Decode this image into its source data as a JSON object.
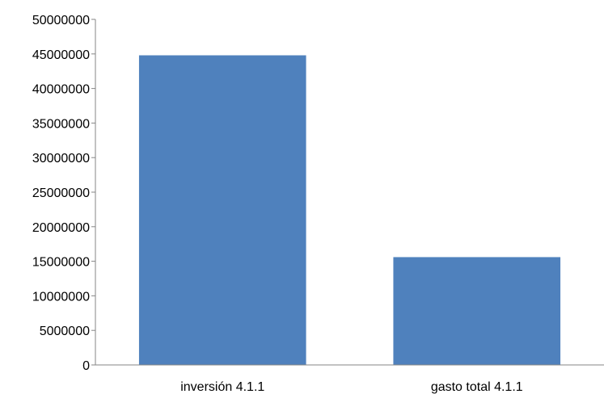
{
  "chart_data": {
    "type": "bar",
    "categories": [
      "inversión 4.1.1",
      "gasto total 4.1.1"
    ],
    "values": [
      44800000,
      15600000
    ],
    "ylim": [
      0,
      50000000
    ],
    "yticks": [
      0,
      5000000,
      10000000,
      15000000,
      20000000,
      25000000,
      30000000,
      35000000,
      40000000,
      45000000,
      50000000
    ],
    "ytick_labels": [
      "0",
      "5000000",
      "10000000",
      "15000000",
      "20000000",
      "25000000",
      "30000000",
      "35000000",
      "40000000",
      "45000000",
      "50000000"
    ],
    "grid": false,
    "legend": "none",
    "bar_color": "#4F81BD",
    "axis_color": "#868686"
  }
}
